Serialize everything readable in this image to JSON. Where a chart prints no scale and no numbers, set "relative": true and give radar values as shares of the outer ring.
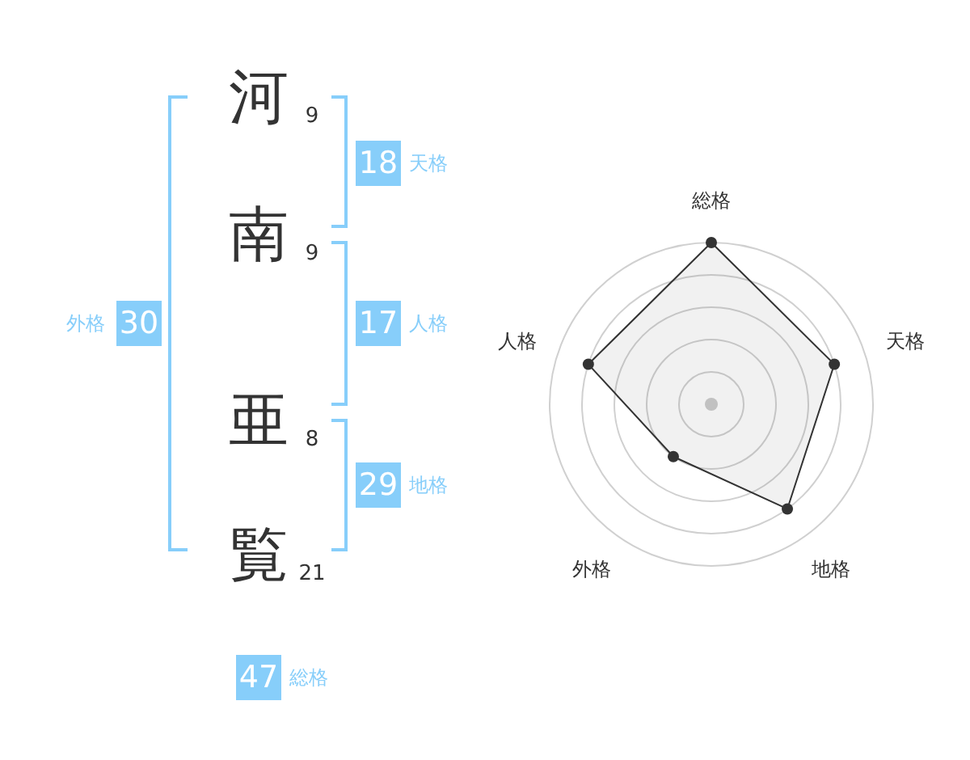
{
  "chart_data": [
    {
      "type": "other",
      "categories": [
        "河",
        "南",
        "亜",
        "覧"
      ],
      "values": [
        9,
        9,
        8,
        21
      ],
      "data_labels": true,
      "color": "#87cefa",
      "annotations": [
        "18 天格",
        "17 人格",
        "29 地格",
        "外格 30",
        "47 総格"
      ]
    },
    {
      "type": "radar",
      "categories": [
        "総格",
        "天格",
        "地格",
        "外格",
        "人格"
      ],
      "relative": true,
      "grid": true,
      "marker": "circle",
      "series": [
        {
          "color": "#333333",
          "values": [
            1,
            0.8,
            0.8,
            0.4,
            0.8
          ]
        }
      ]
    }
  ]
}
